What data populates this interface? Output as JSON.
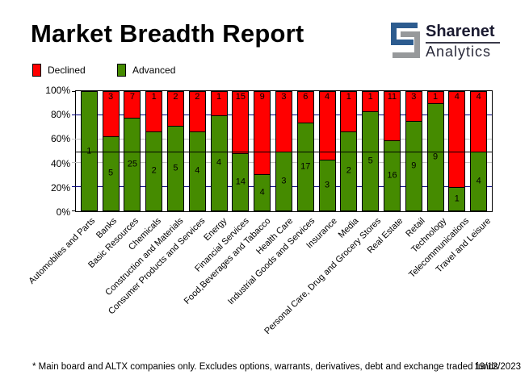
{
  "header": {
    "title": "Market Breadth Report",
    "logo": {
      "line1": "Sharenet",
      "line2": "Analytics",
      "blue": "#2d5c8f",
      "gray": "#97999b"
    }
  },
  "legend": [
    {
      "label": "Declined",
      "color": "#ff0000"
    },
    {
      "label": "Advanced",
      "color": "#458b00"
    }
  ],
  "chart_data": {
    "type": "bar",
    "stacked": true,
    "stack_mode": "percent",
    "title": "Market Breadth Report",
    "categories": [
      "Automobiles and Parts",
      "Banks",
      "Basic Resources",
      "Chemicals",
      "Construction and Materials",
      "Consumer Products and Services",
      "Energy",
      "Financial Services",
      "Food,Beverages and Tabacco",
      "Health Care",
      "Industrial Goods and Services",
      "Insurance",
      "Media",
      "Personal Care, Drug and Grocery Stores",
      "Real Estate",
      "Retail",
      "Technology",
      "Telecommunications",
      "Travel and Leisure"
    ],
    "series": [
      {
        "name": "Declined",
        "color": "#ff0000",
        "values": [
          0,
          3,
          7,
          1,
          2,
          2,
          1,
          15,
          9,
          3,
          6,
          4,
          1,
          1,
          11,
          3,
          1,
          4,
          4
        ]
      },
      {
        "name": "Advanced",
        "color": "#458b00",
        "values": [
          1,
          5,
          25,
          2,
          5,
          4,
          4,
          14,
          4,
          3,
          17,
          3,
          2,
          5,
          16,
          9,
          9,
          1,
          4
        ]
      }
    ],
    "ylim": [
      0,
      100
    ],
    "y_ticks": [
      {
        "v": 100,
        "label": "100%"
      },
      {
        "v": 80,
        "label": "80%"
      },
      {
        "v": 60,
        "label": "60%"
      },
      {
        "v": 40,
        "label": "40%"
      },
      {
        "v": 20,
        "label": "20%"
      },
      {
        "v": 0,
        "label": "0%"
      }
    ],
    "gridlines": [
      {
        "y": 20,
        "color": "#000080"
      },
      {
        "y": 40,
        "color": "#c0c0c0"
      },
      {
        "y": 60,
        "color": "#c0c0c0"
      },
      {
        "y": 80,
        "color": "#000080"
      }
    ],
    "midline": {
      "y": 50,
      "color": "#000000"
    },
    "edge_ticks": [
      0,
      100
    ],
    "legend_position": "top-left",
    "grid": true
  },
  "footer": {
    "note": "* Main board and ALTX companies only. Excludes options, warrants, derivatives, debt and exchange traded funds",
    "date": "19/12/2023"
  }
}
